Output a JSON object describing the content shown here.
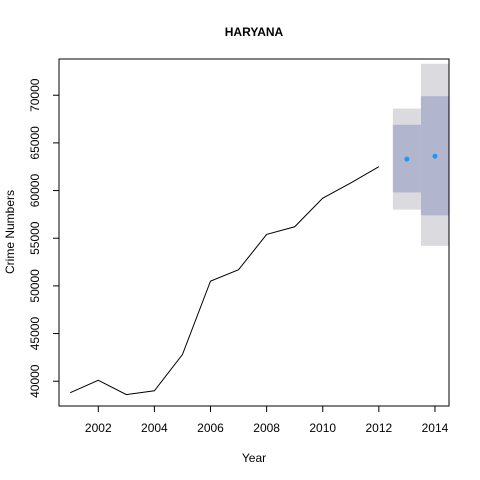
{
  "chart_data": {
    "type": "line",
    "title": "HARYANA",
    "xlabel": "Year",
    "ylabel": "Crime Numbers",
    "xlim": [
      2000.6,
      2014.5
    ],
    "ylim": [
      37400,
      73800
    ],
    "xticks": [
      2002,
      2004,
      2006,
      2008,
      2010,
      2012,
      2014
    ],
    "yticks": [
      40000,
      45000,
      50000,
      55000,
      60000,
      65000,
      70000
    ],
    "grid": false,
    "legend": "none",
    "series": [
      {
        "x": [
          2001,
          2002,
          2003,
          2004,
          2005,
          2006,
          2007,
          2008,
          2009,
          2010,
          2011,
          2012
        ],
        "values": [
          38800,
          40100,
          38600,
          39000,
          42800,
          50500,
          51700,
          55400,
          56200,
          59200,
          60800,
          62500
        ],
        "color": "#000000"
      }
    ],
    "forecast": {
      "x": [
        2013,
        2014
      ],
      "point": [
        63300,
        63600
      ],
      "lo80": [
        59800,
        57400
      ],
      "hi80": [
        66900,
        69900
      ],
      "lo95": [
        58000,
        54200
      ],
      "hi95": [
        68600,
        73300
      ],
      "point_color": "#2196f3",
      "band80_color": "#b1b5ce",
      "band95_color": "#dbdbdf"
    }
  }
}
